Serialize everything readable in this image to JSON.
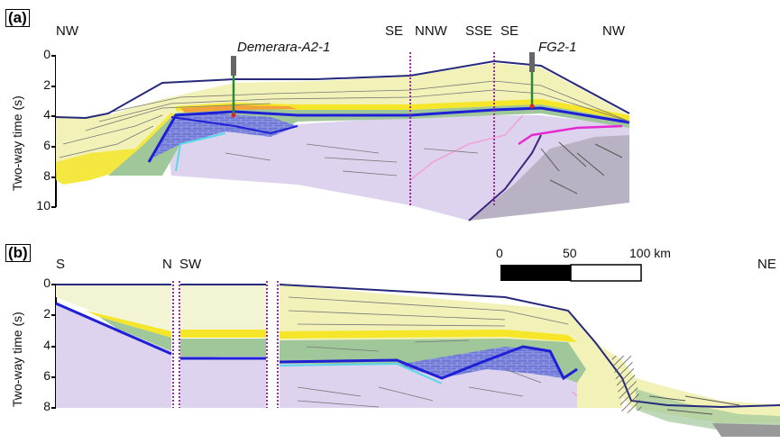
{
  "panels": {
    "a": {
      "tag": "(a)",
      "directions": [
        "NW",
        "SE",
        "NNW",
        "SSE",
        "SE",
        "NW"
      ],
      "wells": [
        "Demerara-A2-1",
        "FG2-1"
      ],
      "ylabel": "Two-way time (s)",
      "yticks": [
        "0",
        "2",
        "4",
        "6",
        "8",
        "10"
      ]
    },
    "b": {
      "tag": "(b)",
      "directions": [
        "S",
        "N",
        "SW",
        "NE"
      ],
      "ylabel": "Two-way time (s)",
      "yticks": [
        "0",
        "2",
        "4",
        "6",
        "8"
      ]
    }
  },
  "scale_bar": {
    "labels": [
      "0",
      "50",
      "100 km"
    ]
  },
  "colors": {
    "water_column": "#f3f4d3",
    "upper_sediments": "#f2f2b8",
    "yellow_horizon": "#f5e62a",
    "orange_horizon": "#f2a23a",
    "green_unit": "#9fc79a",
    "blue_horizon": "#1f1fd6",
    "cyan_horizon": "#57d8e8",
    "basement_lilac": "#ddd3ee",
    "grey_block": "#b9b2c4",
    "seafloor_line": "#262a7a",
    "fault_magenta": "#9b2aa0"
  }
}
